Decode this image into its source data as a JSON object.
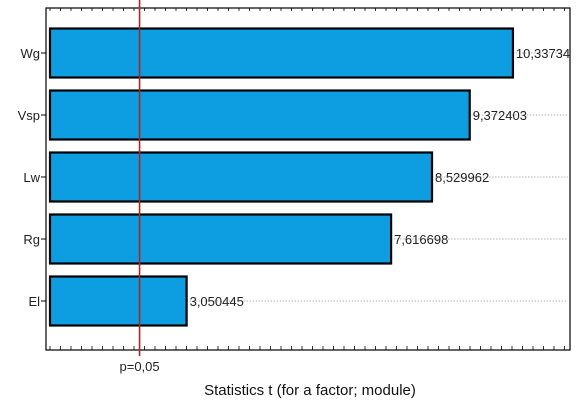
{
  "chart_data": {
    "type": "bar",
    "orientation": "horizontal",
    "categories": [
      "Wg",
      "Vsp",
      "Lw",
      "Rg",
      "El"
    ],
    "values": [
      10.33734,
      9.372403,
      8.529962,
      7.616698,
      3.050445
    ],
    "value_labels": [
      "10,33734",
      "9,372403",
      "8,529962",
      "7,616698",
      "3,050445"
    ],
    "xlabel": "Statistics t (for a factor; module)",
    "xlim": [
      0,
      11.5
    ],
    "grid": "dotted leader lines from bar end to right edge",
    "reference_line": {
      "value": 2.0,
      "label": "p=0,05",
      "color": "#b22222"
    },
    "bar_color": "#0c9ee0",
    "bar_edge_color": "#000000"
  }
}
